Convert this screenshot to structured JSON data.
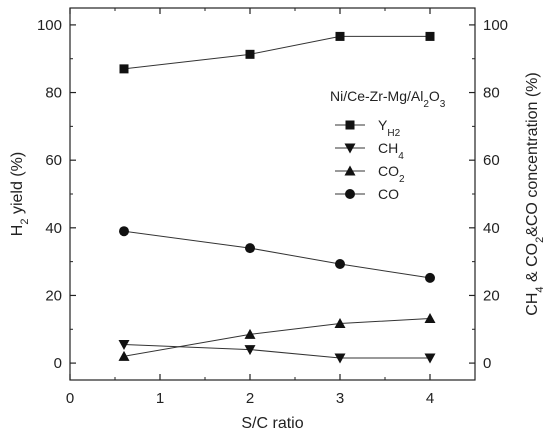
{
  "chart_data": {
    "type": "line",
    "title": "",
    "xlabel": "S/C ratio",
    "ylabel_left": {
      "main": "H",
      "sub": "2",
      "rest": " yield (%)"
    },
    "ylabel_right": {
      "parts": [
        [
          "CH",
          false
        ],
        [
          "4",
          true
        ],
        [
          " & CO",
          false
        ],
        [
          "2",
          true
        ],
        [
          "&CO concentration (%)",
          false
        ]
      ]
    },
    "xlim": [
      0,
      4.5
    ],
    "ylim": [
      -5,
      105
    ],
    "ylim_right": [
      -5,
      105
    ],
    "x_ticks": [
      "0",
      "1",
      "2",
      "3",
      "4"
    ],
    "y_ticks": [
      "0",
      "20",
      "40",
      "60",
      "80",
      "100"
    ],
    "y_ticks_right": [
      "0",
      "20",
      "40",
      "60",
      "80",
      "100"
    ],
    "grid": false,
    "legend_title": {
      "parts": [
        [
          "Ni/Ce-Zr-Mg/Al",
          false
        ],
        [
          "2",
          true
        ],
        [
          "O",
          false
        ],
        [
          "3",
          true
        ]
      ]
    },
    "legend_position": "top-right",
    "x": [
      0.6,
      2,
      3,
      4
    ],
    "series": [
      {
        "name": "Y",
        "name_sub": "H2",
        "marker": "square",
        "axis": "left",
        "values": [
          87,
          91.3,
          96.6,
          96.6
        ]
      },
      {
        "name": "CH",
        "name_sub": "4",
        "marker": "triangle-down",
        "axis": "right",
        "values": [
          5.5,
          4,
          1.5,
          1.5
        ]
      },
      {
        "name": "CO",
        "name_sub": "2",
        "marker": "triangle-up",
        "axis": "right",
        "values": [
          2,
          8.5,
          11.7,
          13.2
        ]
      },
      {
        "name": "CO",
        "name_sub": "",
        "marker": "circle",
        "axis": "right",
        "values": [
          39,
          34,
          29.3,
          25.2
        ]
      }
    ]
  }
}
